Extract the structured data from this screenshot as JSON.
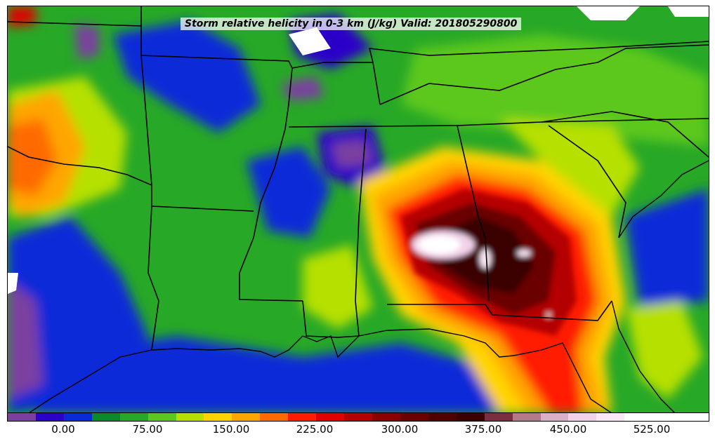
{
  "map": {
    "title": "Storm relative helicity in 0-3 km (J/kg) Valid: 201805290800"
  },
  "colorbar": {
    "tick_labels": [
      "0.00",
      "75.00",
      "150.00",
      "225.00",
      "300.00",
      "375.00",
      "450.00",
      "525.00"
    ],
    "colors": [
      "#7b3fa0",
      "#2b00c8",
      "#0a2ad8",
      "#0a8a2a",
      "#27a827",
      "#5cc81f",
      "#b6e000",
      "#ffd400",
      "#ffa500",
      "#ff6a00",
      "#ff1a00",
      "#e00000",
      "#b40000",
      "#8a0000",
      "#6a0000",
      "#500000",
      "#3a0000",
      "#7a2f3f",
      "#b47a8a",
      "#d9b0c8",
      "#f2d2ea",
      "#fbe8f6",
      "#ffffff",
      "#ffffff",
      "#ffffff"
    ]
  }
}
